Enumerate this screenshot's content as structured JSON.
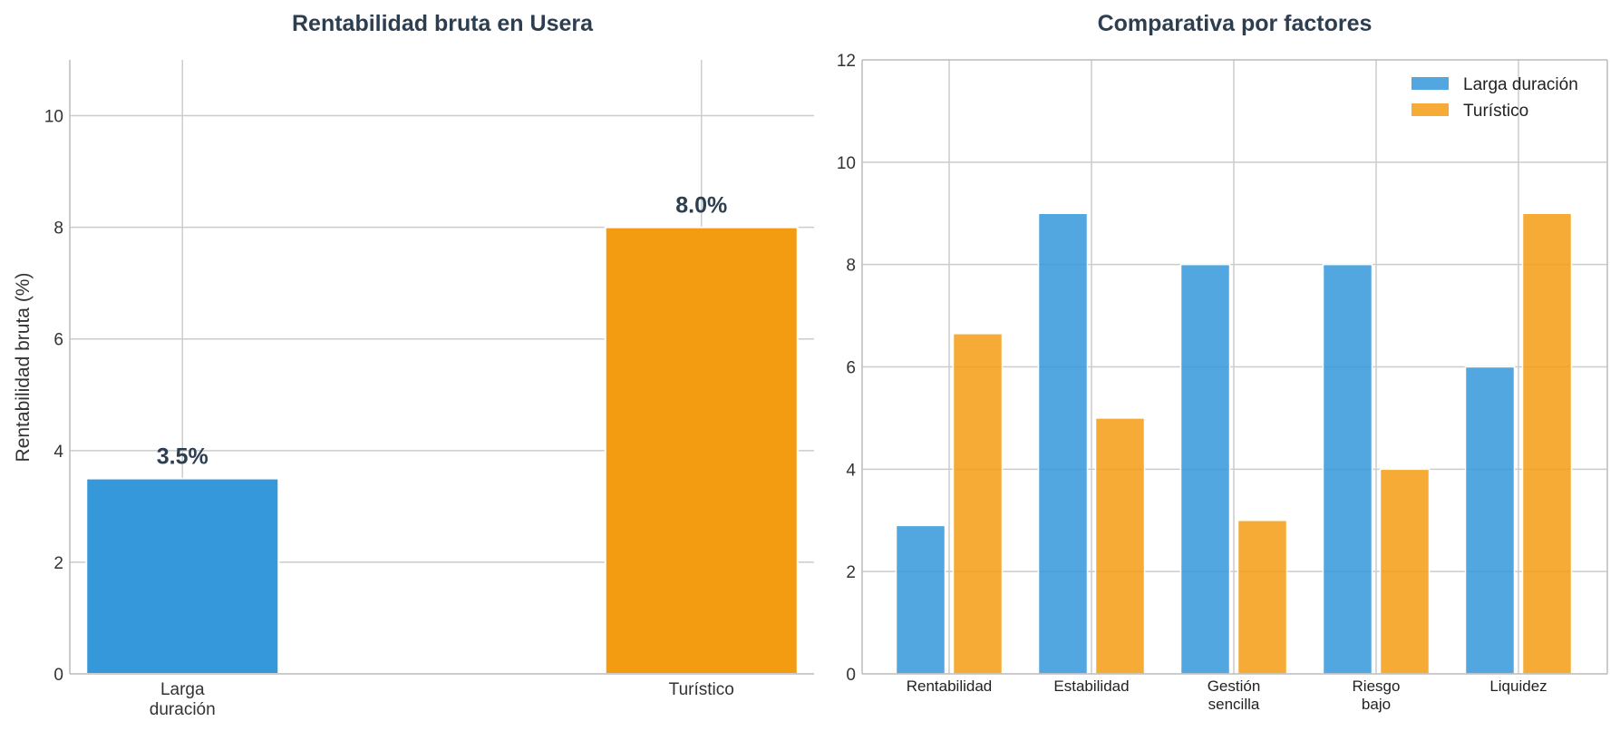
{
  "chart_data": [
    {
      "type": "bar",
      "title": "Rentabilidad bruta en Usera",
      "ylabel": "Rentabilidad bruta (%)",
      "xlabel": "",
      "categories": [
        [
          "Larga",
          "duración"
        ],
        [
          "Turístico"
        ]
      ],
      "values": [
        3.5,
        8.0
      ],
      "data_labels": [
        "3.5%",
        "8.0%"
      ],
      "colors": [
        "#3498db",
        "#f39c12"
      ],
      "ylim": [
        0,
        11
      ],
      "yticks": [
        0,
        2,
        4,
        6,
        8,
        10
      ],
      "grid": true
    },
    {
      "type": "bar",
      "title": "Comparativa por factores",
      "xlabel": "",
      "ylabel": "",
      "categories": [
        [
          "Rentabilidad"
        ],
        [
          "Estabilidad"
        ],
        [
          "Gestión",
          "sencilla"
        ],
        [
          "Riesgo",
          "bajo"
        ],
        [
          "Liquidez"
        ]
      ],
      "series": [
        {
          "name": "Larga duración",
          "values": [
            2.9,
            9,
            8,
            8,
            6
          ],
          "color": "#3498db"
        },
        {
          "name": "Turístico",
          "values": [
            6.65,
            5,
            3,
            4,
            9
          ],
          "color": "#f39c12"
        }
      ],
      "ylim": [
        0,
        12
      ],
      "yticks": [
        0,
        2,
        4,
        6,
        8,
        10,
        12
      ],
      "legend": "top-right",
      "grid": true
    }
  ]
}
